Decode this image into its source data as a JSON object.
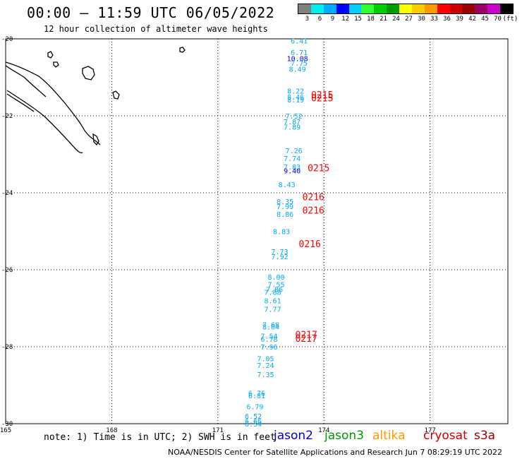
{
  "header": {
    "title": "00:00 – 11:59 UTC 06/05/2022",
    "subtitle": "12 hour collection of altimeter wave heights"
  },
  "legend": {
    "colors": [
      "#808080",
      "#00eeee",
      "#00aaff",
      "#0000ff",
      "#00ccff",
      "#33ff33",
      "#00cc00",
      "#009900",
      "#ffff00",
      "#ffcc00",
      "#ff9900",
      "#ff0000",
      "#cc0000",
      "#990000",
      "#990066",
      "#cc00cc",
      "#000000"
    ],
    "labels": [
      "3",
      "6",
      "9",
      "12",
      "15",
      "18",
      "21",
      "24",
      "27",
      "30",
      "33",
      "36",
      "39",
      "42",
      "45",
      "70",
      "(ft)"
    ]
  },
  "axes": {
    "lon_ticks": [
      "165",
      "168",
      "171",
      "174",
      "177"
    ],
    "lat_ticks": [
      "-20",
      "-22",
      "-24",
      "-26",
      "-28",
      "-30"
    ]
  },
  "chart_data": {
    "type": "scatter",
    "x_range": [
      165,
      179.2
    ],
    "y_range": [
      -30,
      -20
    ],
    "wave_heights_ft": [
      {
        "lon": 173.3,
        "lat": -20.05,
        "v": "6.41",
        "c": "#00aaff"
      },
      {
        "lon": 173.3,
        "lat": -20.35,
        "v": "6.71",
        "c": "#00aaff"
      },
      {
        "lon": 173.25,
        "lat": -20.5,
        "v": "10.08",
        "c": "#0000ff"
      },
      {
        "lon": 173.3,
        "lat": -20.62,
        "v": "7.75",
        "c": "#00aaff"
      },
      {
        "lon": 173.25,
        "lat": -20.78,
        "v": "8.49",
        "c": "#00aaff"
      },
      {
        "lon": 173.2,
        "lat": -21.35,
        "v": "8.22",
        "c": "#00aaff"
      },
      {
        "lon": 173.2,
        "lat": -21.5,
        "v": "8.46",
        "c": "#00aaff"
      },
      {
        "lon": 173.2,
        "lat": -21.58,
        "v": "8.19",
        "c": "#00aaff"
      },
      {
        "lon": 173.15,
        "lat": -22.0,
        "v": "7.52",
        "c": "#00aaff"
      },
      {
        "lon": 173.1,
        "lat": -22.15,
        "v": "7.87",
        "c": "#00aaff"
      },
      {
        "lon": 173.1,
        "lat": -22.28,
        "v": "7.89",
        "c": "#00aaff"
      },
      {
        "lon": 173.15,
        "lat": -22.9,
        "v": "7.26",
        "c": "#00aaff"
      },
      {
        "lon": 173.1,
        "lat": -23.1,
        "v": "7.74",
        "c": "#00aaff"
      },
      {
        "lon": 173.1,
        "lat": -23.32,
        "v": "7.83",
        "c": "#00aaff"
      },
      {
        "lon": 173.1,
        "lat": -23.42,
        "v": "9.40",
        "c": "#0000ff"
      },
      {
        "lon": 172.95,
        "lat": -23.78,
        "v": "8.43",
        "c": "#00aaff"
      },
      {
        "lon": 172.9,
        "lat": -24.22,
        "v": "8.35",
        "c": "#00aaff"
      },
      {
        "lon": 172.9,
        "lat": -24.35,
        "v": "7.99",
        "c": "#00aaff"
      },
      {
        "lon": 172.9,
        "lat": -24.55,
        "v": "8.86",
        "c": "#00aaff"
      },
      {
        "lon": 172.8,
        "lat": -25.0,
        "v": "8.83",
        "c": "#00aaff"
      },
      {
        "lon": 172.75,
        "lat": -25.52,
        "v": "7.73",
        "c": "#00aaff"
      },
      {
        "lon": 172.75,
        "lat": -25.65,
        "v": "7.92",
        "c": "#00aaff"
      },
      {
        "lon": 172.65,
        "lat": -26.18,
        "v": "8.00",
        "c": "#00aaff"
      },
      {
        "lon": 172.65,
        "lat": -26.38,
        "v": "7.55",
        "c": "#00aaff"
      },
      {
        "lon": 172.6,
        "lat": -26.5,
        "v": "7.86",
        "c": "#00aaff"
      },
      {
        "lon": 172.55,
        "lat": -26.58,
        "v": "7.88",
        "c": "#00aaff"
      },
      {
        "lon": 172.55,
        "lat": -26.8,
        "v": "8.61",
        "c": "#00aaff"
      },
      {
        "lon": 172.55,
        "lat": -27.02,
        "v": "7.77",
        "c": "#00aaff"
      },
      {
        "lon": 172.5,
        "lat": -27.42,
        "v": "7.68",
        "c": "#00aaff"
      },
      {
        "lon": 172.5,
        "lat": -27.48,
        "v": "8.04",
        "c": "#00aaff"
      },
      {
        "lon": 172.45,
        "lat": -27.72,
        "v": "7.54",
        "c": "#00aaff"
      },
      {
        "lon": 172.45,
        "lat": -27.8,
        "v": "6.78",
        "c": "#00aaff"
      },
      {
        "lon": 172.45,
        "lat": -28.0,
        "v": "7.96",
        "c": "#00aaff"
      },
      {
        "lon": 172.35,
        "lat": -28.3,
        "v": "7.05",
        "c": "#00aaff"
      },
      {
        "lon": 172.35,
        "lat": -28.48,
        "v": "7.24",
        "c": "#00aaff"
      },
      {
        "lon": 172.35,
        "lat": -28.72,
        "v": "7.35",
        "c": "#00aaff"
      },
      {
        "lon": 172.1,
        "lat": -29.2,
        "v": "6.76",
        "c": "#00aaff"
      },
      {
        "lon": 172.1,
        "lat": -29.27,
        "v": "6.81",
        "c": "#00aaff"
      },
      {
        "lon": 172.05,
        "lat": -29.55,
        "v": "6.79",
        "c": "#00aaff"
      },
      {
        "lon": 172.0,
        "lat": -29.8,
        "v": "6.52",
        "c": "#00aaff"
      },
      {
        "lon": 172.0,
        "lat": -29.93,
        "v": "6.66",
        "c": "#00aaff"
      },
      {
        "lon": 172.0,
        "lat": -30.0,
        "v": "6.34",
        "c": "#00aaff"
      }
    ],
    "pass_times": [
      {
        "lon": 173.95,
        "lat": -21.45,
        "t": "0215"
      },
      {
        "lon": 173.95,
        "lat": -21.53,
        "t": "0215"
      },
      {
        "lon": 173.85,
        "lat": -23.35,
        "t": "0215"
      },
      {
        "lon": 173.7,
        "lat": -24.1,
        "t": "0216"
      },
      {
        "lon": 173.7,
        "lat": -24.45,
        "t": "0216"
      },
      {
        "lon": 173.6,
        "lat": -25.32,
        "t": "0216"
      },
      {
        "lon": 173.5,
        "lat": -27.68,
        "t": "0217"
      },
      {
        "lon": 173.5,
        "lat": -27.78,
        "t": "0217"
      }
    ]
  },
  "footer": {
    "note": "note: 1) Time is in UTC; 2) SWH is in feet",
    "satellites": [
      {
        "name": "jason2",
        "color": "#0000cc"
      },
      {
        "name": "jason3",
        "color": "#009900"
      },
      {
        "name": "altika",
        "color": "#ff9900"
      },
      {
        "name": "cryosat",
        "color": "#cc0000"
      },
      {
        "name": "s3a",
        "color": "#990000"
      }
    ],
    "credit": "NOAA/NESDIS Center for Satellite Applications and Research   Jun  7 08:29:19 UTC 2022"
  }
}
